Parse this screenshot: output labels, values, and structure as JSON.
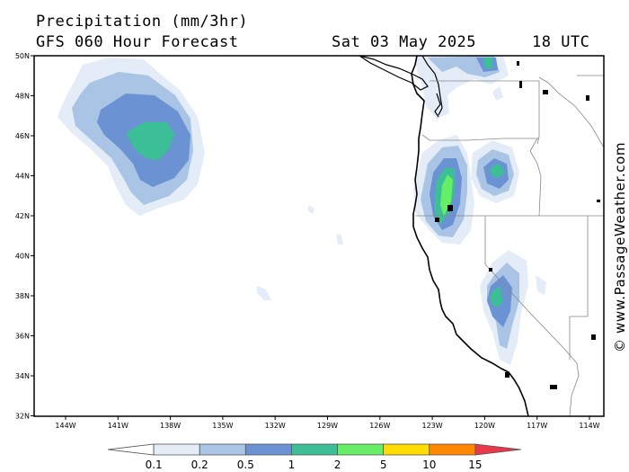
{
  "header": {
    "title": "Precipitation (mm/3hr)",
    "subtitle": "GFS 060 Hour Forecast",
    "valid_date": "Sat 03 May 2025",
    "valid_time": "18 UTC"
  },
  "credit": "© www.PassageWeather.com",
  "map": {
    "lat_labels": [
      "50N",
      "48N",
      "46N",
      "44N",
      "42N",
      "40N",
      "38N",
      "36N",
      "34N",
      "32N"
    ],
    "lon_labels": [
      "144W",
      "141W",
      "138W",
      "135W",
      "132W",
      "129W",
      "126W",
      "123W",
      "120W",
      "117W",
      "114W"
    ],
    "precip_colors": [
      "#ffffff",
      "#e3ecf7",
      "#a9c4e4",
      "#6b92d3",
      "#3cbf96",
      "#66ee66",
      "#ffdd00",
      "#ff8800",
      "#e8384a"
    ]
  },
  "legend": {
    "colors": [
      "#ffffff",
      "#e3ecf7",
      "#a9c4e4",
      "#6b92d3",
      "#3cbf96",
      "#66ee66",
      "#ffdd00",
      "#ff8800",
      "#e8384a"
    ],
    "labels": [
      "0.1",
      "0.2",
      "0.5",
      "1",
      "2",
      "5",
      "10",
      "15"
    ]
  }
}
